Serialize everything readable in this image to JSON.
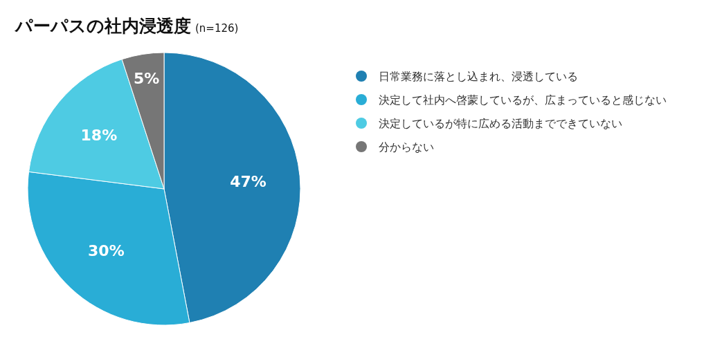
{
  "chart_data": {
    "type": "pie",
    "title": "パーパスの社内浸透度",
    "subtitle": "(n=126)",
    "categories": [
      "日常業務に落とし込まれ、浸透している",
      "決定して社内へ啓蒙しているが、広まっていると感じない",
      "決定しているが特に広める活動までできていない",
      "分からない"
    ],
    "values": [
      47,
      30,
      18,
      5
    ],
    "colors": [
      "#1f80b2",
      "#29add6",
      "#4ecbe3",
      "#767676"
    ],
    "value_labels": [
      "47%",
      "30%",
      "18%",
      "5%"
    ],
    "legend": "right"
  }
}
